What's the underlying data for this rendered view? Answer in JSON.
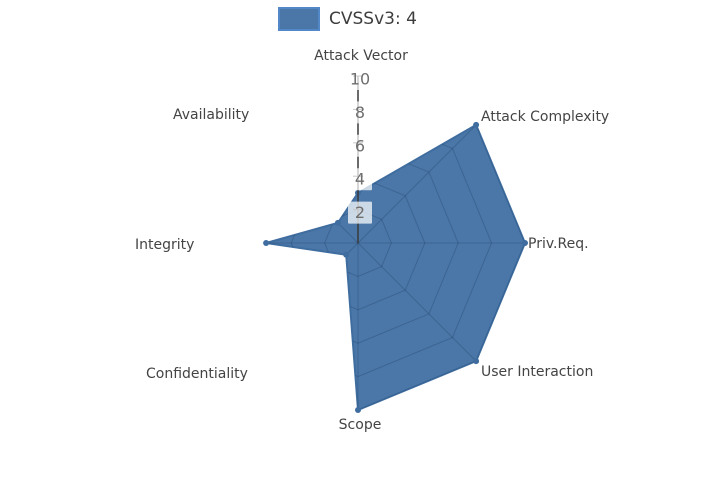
{
  "legend": {
    "label": "CVSSv3: 4",
    "swatch_fill": "#4a77a8",
    "swatch_border": "#5288c7"
  },
  "chart_data": {
    "type": "radar",
    "title": "",
    "axes": [
      "Attack Vector",
      "Attack Complexity",
      "Priv.Req.",
      "User Interaction",
      "Scope",
      "Confidentiality",
      "Integrity",
      "Availability"
    ],
    "series": [
      {
        "name": "CVSSv3: 4",
        "values": [
          3,
          10,
          10,
          10,
          10,
          1,
          5.5,
          1.7
        ]
      }
    ],
    "radial_ticks": [
      2,
      4,
      6,
      8,
      10
    ],
    "radial_range": [
      0,
      10
    ],
    "axis_start": "top",
    "direction": "clockwise",
    "legend_position": "top",
    "fill_color": "#4a77a8",
    "stroke_color": "#3f6d9f",
    "marker_color": "#3f6d9f",
    "web_line_color": "rgba(15,35,70,0.22)",
    "radial_axis_color": "#3a3a3a",
    "tick_text_color": "#6e6e6e",
    "tick_box_color": "rgba(255,255,255,0.72)",
    "grid_visible": "inside-fill-only"
  }
}
